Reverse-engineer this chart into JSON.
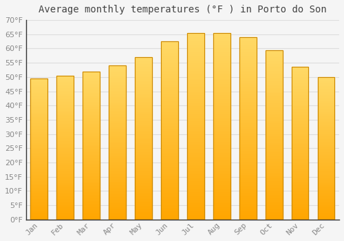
{
  "title": "Average monthly temperatures (°F ) in Porto do Son",
  "months": [
    "Jan",
    "Feb",
    "Mar",
    "Apr",
    "May",
    "Jun",
    "Jul",
    "Aug",
    "Sep",
    "Oct",
    "Nov",
    "Dec"
  ],
  "values": [
    49.5,
    50.5,
    52.0,
    54.0,
    57.0,
    62.5,
    65.5,
    65.5,
    64.0,
    59.5,
    53.5,
    50.0
  ],
  "bar_color_top": "#FFD966",
  "bar_color_bottom": "#FFA500",
  "bar_edge_color": "#CC8800",
  "background_color": "#F5F5F5",
  "plot_bg_color": "#F5F5F5",
  "grid_color": "#DDDDDD",
  "text_color": "#888888",
  "axis_color": "#333333",
  "ylim": [
    0,
    70
  ],
  "yticks": [
    0,
    5,
    10,
    15,
    20,
    25,
    30,
    35,
    40,
    45,
    50,
    55,
    60,
    65,
    70
  ],
  "title_fontsize": 10,
  "tick_fontsize": 8,
  "bar_width": 0.65
}
